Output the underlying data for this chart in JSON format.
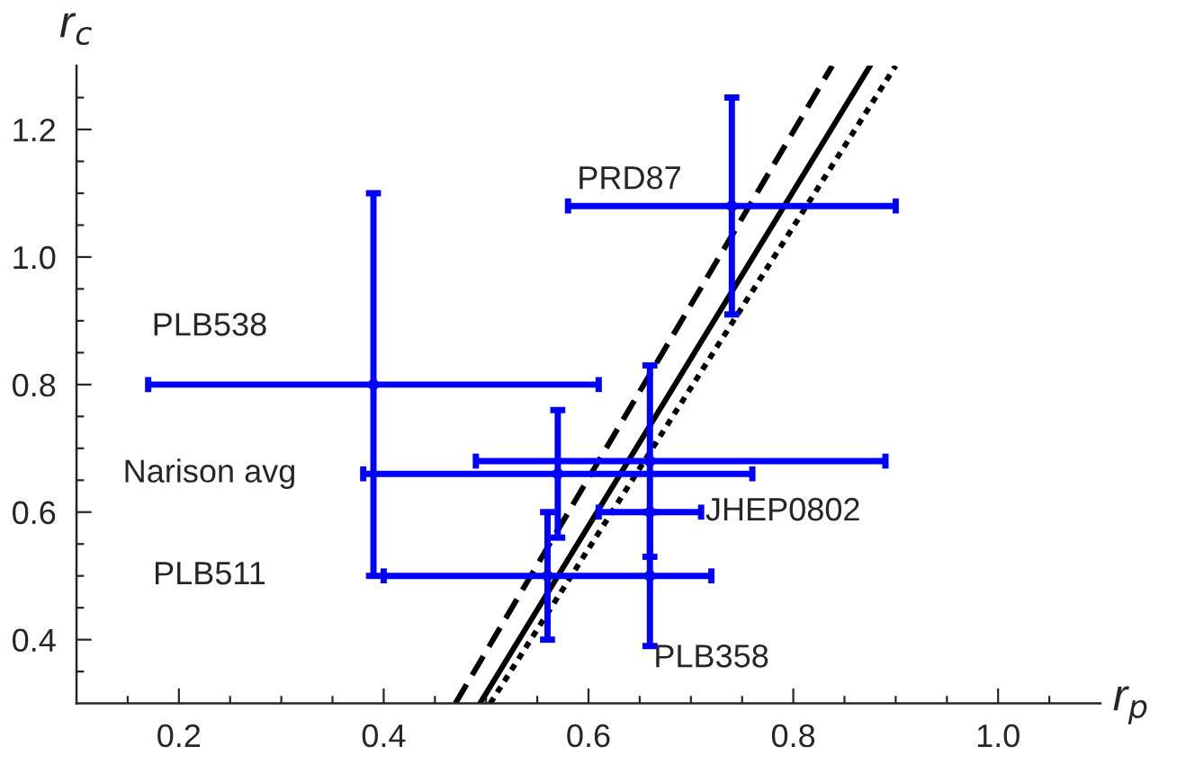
{
  "chart_data": {
    "type": "scatter",
    "xlabel": "r$_{p}$",
    "ylabel": "r$_{c}$",
    "xlim": [
      0.1,
      1.1
    ],
    "ylim": [
      0.3,
      1.3
    ],
    "xticks": [
      {
        "value": 0.15,
        "label": null
      },
      0.2,
      {
        "value": 0.25,
        "label": null
      },
      {
        "value": 0.3,
        "label": null
      },
      {
        "value": 0.35,
        "label": null
      },
      0.4,
      {
        "value": 0.45,
        "label": null
      },
      {
        "value": 0.5,
        "label": null
      },
      {
        "value": 0.55,
        "label": null
      },
      0.6,
      {
        "value": 0.65,
        "label": null
      },
      {
        "value": 0.7,
        "label": null
      },
      {
        "value": 0.75,
        "label": null
      },
      0.8,
      {
        "value": 0.85,
        "label": null
      },
      {
        "value": 0.9,
        "label": null
      },
      {
        "value": 0.95,
        "label": null
      },
      {
        "value": 1.0,
        "label": "1.0"
      },
      {
        "value": 1.05,
        "label": null
      }
    ],
    "yticks": [
      {
        "value": 0.35,
        "label": null
      },
      0.4,
      {
        "value": 0.45,
        "label": null
      },
      {
        "value": 0.5,
        "label": null
      },
      {
        "value": 0.55,
        "label": null
      },
      0.6,
      {
        "value": 0.65,
        "label": null
      },
      {
        "value": 0.7,
        "label": null
      },
      {
        "value": 0.75,
        "label": null
      },
      0.8,
      {
        "value": 0.85,
        "label": null
      },
      {
        "value": 0.9,
        "label": null
      },
      {
        "value": 0.95,
        "label": null
      },
      {
        "value": 1.0,
        "label": "1.0"
      },
      {
        "value": 1.05,
        "label": null
      },
      {
        "value": 1.1,
        "label": null
      },
      {
        "value": 1.15,
        "label": null
      },
      1.2,
      {
        "value": 1.25,
        "label": null
      }
    ],
    "grid": false,
    "legend": false,
    "series": [
      {
        "color": "#0000ff",
        "marker": "circle",
        "x": [
          0.74,
          0.39,
          0.57,
          0.66,
          0.66,
          0.56,
          0.66
        ],
        "values": [
          1.08,
          0.8,
          0.66,
          0.68,
          0.6,
          0.5,
          0.5
        ],
        "xerrors": [
          [
            0.58,
            0.9
          ],
          [
            0.17,
            0.61
          ],
          [
            0.38,
            0.76
          ],
          [
            0.49,
            0.89
          ],
          [
            0.61,
            0.71
          ],
          [
            0.4,
            0.72
          ],
          null
        ],
        "errors": [
          [
            0.91,
            1.25
          ],
          [
            0.5,
            1.1
          ],
          [
            0.56,
            0.76
          ],
          [
            0.53,
            0.83
          ],
          null,
          [
            0.4,
            0.6
          ],
          [
            0.39,
            0.6
          ]
        ]
      },
      {
        "type": "line",
        "color": "#000000",
        "line_style": "solid",
        "marker": "none",
        "x": [
          0.494,
          0.875
        ],
        "values": [
          0.3,
          1.3
        ]
      },
      {
        "type": "line",
        "color": "#000000",
        "line_style": "dashed",
        "marker": "none",
        "x": [
          0.47,
          0.838
        ],
        "values": [
          0.3,
          1.3
        ]
      },
      {
        "type": "line",
        "color": "#000000",
        "line_style": "dotted",
        "marker": "none",
        "x": [
          0.504,
          0.9
        ],
        "values": [
          0.3,
          1.3
        ]
      }
    ],
    "annotations": [
      "PRD87",
      "PLB538",
      "Narison avg",
      "JHEP0802",
      "PLB511",
      "PLB358"
    ]
  }
}
